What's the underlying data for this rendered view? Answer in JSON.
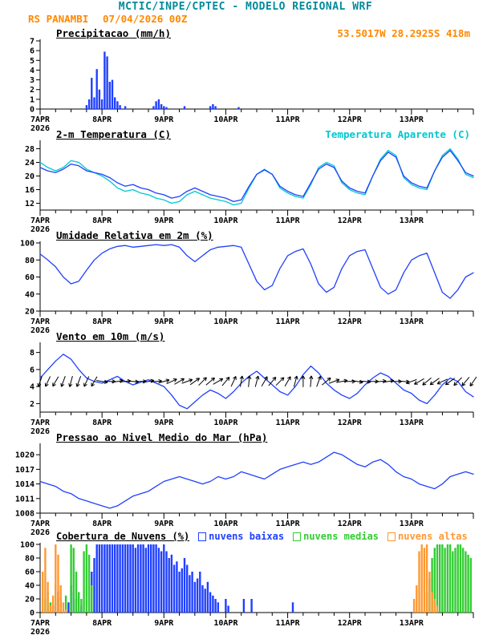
{
  "header": {
    "title": "MCTIC/INPE/CPTEC - MODELO REGIONAL WRF",
    "station": "RS PANAMBI",
    "run": "07/04/2026 00Z",
    "location": "53.5017W 28.2925S 418m"
  },
  "colors": {
    "teal": "#008b9b",
    "orange_text": "#ff8800",
    "blue_line": "#2040ff",
    "cyan_line": "#00c8d0",
    "green_bar": "#33cc33",
    "orange_bar": "#ff9933",
    "axis": "#000000"
  },
  "x_axis": {
    "hours": 168,
    "day_step": 24,
    "minor_step": 6,
    "day_labels": [
      "7APR",
      "8APR",
      "9APR",
      "10APR",
      "11APR",
      "12APR",
      "13APR"
    ],
    "year_label": "2026"
  },
  "chart_data": [
    {
      "type": "bar",
      "title": "Precipitacao (mm/h)",
      "ylim": [
        0,
        7
      ],
      "yticks": [
        0,
        1,
        2,
        3,
        4,
        5,
        6,
        7
      ],
      "series": [
        {
          "name": "precipitacao",
          "type": "bars",
          "color": "#2040ff",
          "data": [
            [
              18,
              0.4
            ],
            [
              19,
              1.0
            ],
            [
              20,
              3.2
            ],
            [
              21,
              1.2
            ],
            [
              22,
              4.1
            ],
            [
              23,
              2.0
            ],
            [
              24,
              1.0
            ],
            [
              25,
              5.9
            ],
            [
              26,
              5.4
            ],
            [
              27,
              2.8
            ],
            [
              28,
              3.0
            ],
            [
              29,
              1.2
            ],
            [
              30,
              0.8
            ],
            [
              31,
              0.4
            ],
            [
              33,
              0.3
            ],
            [
              44,
              0.3
            ],
            [
              45,
              0.8
            ],
            [
              46,
              1.0
            ],
            [
              47,
              0.5
            ],
            [
              48,
              0.3
            ],
            [
              49,
              0.2
            ],
            [
              56,
              0.3
            ],
            [
              66,
              0.3
            ],
            [
              67,
              0.5
            ],
            [
              68,
              0.3
            ],
            [
              77,
              0.2
            ]
          ]
        }
      ]
    },
    {
      "type": "line",
      "title": "2-m Temperatura (C)",
      "extra_label": {
        "text": "Temperatura Aparente (C)",
        "color": "#00c8d0"
      },
      "ylim": [
        10,
        30
      ],
      "yticks": [
        12,
        16,
        20,
        24,
        28
      ],
      "series": [
        {
          "name": "temperatura_aparente",
          "type": "line",
          "color": "#00c8d0",
          "step": 3,
          "values": [
            24.0,
            22.5,
            21.5,
            22.5,
            24.5,
            24.0,
            22.0,
            21.0,
            20.0,
            18.5,
            16.5,
            15.5,
            16.0,
            15.0,
            14.5,
            13.5,
            13.0,
            12.0,
            12.5,
            14.5,
            15.5,
            14.5,
            13.5,
            13.0,
            12.5,
            11.5,
            12.0,
            16.5,
            20.5,
            22.0,
            20.5,
            16.5,
            15.0,
            14.0,
            13.5,
            17.5,
            22.5,
            24.0,
            23.0,
            18.0,
            16.0,
            15.0,
            14.5,
            20.0,
            25.0,
            27.5,
            26.0,
            19.5,
            17.5,
            16.5,
            16.0,
            21.5,
            26.0,
            28.0,
            25.0,
            20.5,
            19.5
          ]
        },
        {
          "name": "temperatura_2m",
          "type": "line",
          "color": "#2040ff",
          "step": 3,
          "values": [
            22.5,
            21.5,
            21.0,
            22.0,
            23.5,
            23.0,
            21.5,
            21.0,
            20.5,
            19.5,
            18.0,
            17.0,
            17.5,
            16.5,
            16.0,
            15.0,
            14.5,
            13.5,
            14.0,
            15.5,
            16.5,
            15.5,
            14.5,
            14.0,
            13.5,
            12.5,
            13.0,
            17.0,
            20.5,
            21.8,
            20.5,
            17.0,
            15.5,
            14.5,
            14.0,
            18.0,
            22.0,
            23.5,
            22.5,
            18.5,
            16.5,
            15.5,
            15.0,
            20.0,
            24.5,
            27.0,
            25.5,
            20.0,
            18.0,
            17.0,
            16.5,
            21.5,
            25.5,
            27.5,
            24.5,
            21.0,
            20.0
          ]
        }
      ]
    },
    {
      "type": "line",
      "title": "Umidade Relativa em 2m (%)",
      "ylim": [
        20,
        100
      ],
      "yticks": [
        20,
        40,
        60,
        80,
        100
      ],
      "series": [
        {
          "name": "umidade_relativa",
          "type": "line",
          "color": "#2040ff",
          "step": 3,
          "values": [
            87,
            80,
            72,
            60,
            52,
            55,
            68,
            80,
            88,
            93,
            96,
            97,
            95,
            96,
            97,
            98,
            97,
            98,
            95,
            85,
            78,
            85,
            92,
            95,
            96,
            97,
            95,
            75,
            55,
            45,
            50,
            70,
            85,
            90,
            93,
            75,
            52,
            42,
            48,
            70,
            85,
            90,
            92,
            70,
            48,
            40,
            45,
            65,
            80,
            85,
            88,
            65,
            42,
            35,
            45,
            60,
            65
          ]
        }
      ]
    },
    {
      "type": "line",
      "title": "Vento em 10m (m/s)",
      "ylim": [
        1,
        9
      ],
      "yticks": [
        2,
        4,
        6,
        8
      ],
      "series": [
        {
          "name": "velocidade_vento",
          "type": "line",
          "color": "#2040ff",
          "step": 3,
          "values": [
            5.0,
            6.0,
            7.0,
            7.8,
            7.2,
            6.0,
            5.0,
            4.6,
            4.4,
            4.8,
            5.2,
            4.6,
            4.2,
            4.5,
            4.8,
            4.4,
            4.0,
            3.0,
            1.8,
            1.4,
            2.2,
            3.0,
            3.6,
            3.2,
            2.6,
            3.4,
            4.4,
            5.2,
            5.8,
            5.0,
            4.2,
            3.4,
            3.0,
            4.0,
            5.4,
            6.4,
            5.6,
            4.4,
            3.6,
            3.0,
            2.6,
            3.2,
            4.2,
            5.0,
            5.6,
            5.2,
            4.4,
            3.6,
            3.2,
            2.4,
            2.0,
            3.0,
            4.2,
            5.0,
            4.6,
            3.4,
            2.8
          ]
        },
        {
          "name": "direcao_vento",
          "type": "arrows",
          "color": "#000000",
          "anchor_y": 4.6,
          "step": 3,
          "dirs": [
            250,
            245,
            240,
            250,
            255,
            250,
            245,
            240,
            350,
            0,
            10,
            5,
            355,
            0,
            10,
            5,
            15,
            25,
            30,
            20,
            35,
            45,
            40,
            30,
            50,
            65,
            80,
            85,
            75,
            60,
            50,
            45,
            60,
            75,
            90,
            85,
            70,
            40,
            20,
            10,
            0,
            350,
            355,
            0,
            5,
            10,
            0,
            355,
            200,
            210,
            220,
            215,
            205,
            215,
            225,
            230,
            235
          ]
        }
      ]
    },
    {
      "type": "line",
      "title": "Pressao ao Nivel Medio do Mar (hPa)",
      "ylim": [
        1008,
        1022
      ],
      "yticks": [
        1008,
        1011,
        1014,
        1017,
        1020
      ],
      "series": [
        {
          "name": "pressao_nivel_mar",
          "type": "line",
          "color": "#2040ff",
          "step": 3,
          "values": [
            1014.5,
            1014.0,
            1013.5,
            1012.5,
            1012.0,
            1011.0,
            1010.5,
            1010.0,
            1009.5,
            1009.0,
            1009.5,
            1010.5,
            1011.5,
            1012.0,
            1012.5,
            1013.5,
            1014.5,
            1015.0,
            1015.5,
            1015.0,
            1014.5,
            1014.0,
            1014.5,
            1015.5,
            1015.0,
            1015.5,
            1016.5,
            1016.0,
            1015.5,
            1015.0,
            1016.0,
            1017.0,
            1017.5,
            1018.0,
            1018.5,
            1018.0,
            1018.5,
            1019.5,
            1020.5,
            1020.0,
            1019.0,
            1018.0,
            1017.5,
            1018.5,
            1019.0,
            1018.0,
            1016.5,
            1015.5,
            1015.0,
            1014.0,
            1013.5,
            1013.0,
            1014.0,
            1015.5,
            1016.0,
            1016.5,
            1016.0
          ]
        }
      ]
    },
    {
      "type": "bar",
      "title": "Cobertura de Nuvens (%)",
      "ylim": [
        0,
        100
      ],
      "yticks": [
        0,
        20,
        40,
        60,
        80,
        100
      ],
      "legend": [
        {
          "label": "nuvens baixas",
          "color": "#2040ff"
        },
        {
          "label": "nuvens medias",
          "color": "#33cc33"
        },
        {
          "label": "nuvens altas",
          "color": "#ff9933"
        }
      ],
      "series": [
        {
          "name": "nuvens_baixas",
          "type": "bars",
          "color": "#2040ff",
          "data": [
            [
              5,
              10
            ],
            [
              7,
              30
            ],
            [
              8,
              20
            ],
            [
              11,
              15
            ],
            [
              12,
              40
            ],
            [
              13,
              30
            ],
            [
              14,
              20
            ],
            [
              16,
              10
            ],
            [
              20,
              60
            ],
            [
              21,
              80
            ],
            [
              22,
              100
            ],
            [
              23,
              100
            ],
            [
              24,
              100
            ],
            [
              25,
              100
            ],
            [
              26,
              100
            ],
            [
              27,
              100
            ],
            [
              28,
              100
            ],
            [
              29,
              100
            ],
            [
              30,
              100
            ],
            [
              31,
              100
            ],
            [
              32,
              100
            ],
            [
              33,
              100
            ],
            [
              34,
              100
            ],
            [
              35,
              100
            ],
            [
              36,
              100
            ],
            [
              37,
              95
            ],
            [
              38,
              100
            ],
            [
              39,
              100
            ],
            [
              40,
              100
            ],
            [
              41,
              95
            ],
            [
              42,
              100
            ],
            [
              43,
              100
            ],
            [
              44,
              100
            ],
            [
              45,
              100
            ],
            [
              46,
              95
            ],
            [
              47,
              90
            ],
            [
              48,
              100
            ],
            [
              49,
              90
            ],
            [
              50,
              80
            ],
            [
              51,
              85
            ],
            [
              52,
              70
            ],
            [
              53,
              75
            ],
            [
              54,
              60
            ],
            [
              55,
              65
            ],
            [
              56,
              80
            ],
            [
              57,
              70
            ],
            [
              58,
              55
            ],
            [
              59,
              60
            ],
            [
              60,
              45
            ],
            [
              61,
              50
            ],
            [
              62,
              60
            ],
            [
              63,
              40
            ],
            [
              64,
              35
            ],
            [
              65,
              45
            ],
            [
              66,
              30
            ],
            [
              67,
              25
            ],
            [
              68,
              20
            ],
            [
              69,
              15
            ],
            [
              72,
              20
            ],
            [
              73,
              10
            ],
            [
              79,
              20
            ],
            [
              82,
              20
            ],
            [
              98,
              15
            ]
          ]
        },
        {
          "name": "nuvens_medias",
          "type": "bars",
          "color": "#33cc33",
          "data": [
            [
              2,
              20
            ],
            [
              3,
              30
            ],
            [
              4,
              15
            ],
            [
              6,
              40
            ],
            [
              7,
              20
            ],
            [
              8,
              10
            ],
            [
              10,
              25
            ],
            [
              12,
              100
            ],
            [
              13,
              95
            ],
            [
              14,
              60
            ],
            [
              15,
              30
            ],
            [
              16,
              20
            ],
            [
              17,
              90
            ],
            [
              18,
              100
            ],
            [
              19,
              85
            ],
            [
              20,
              40
            ],
            [
              150,
              30
            ],
            [
              151,
              50
            ],
            [
              152,
              80
            ],
            [
              153,
              95
            ],
            [
              154,
              100
            ],
            [
              155,
              100
            ],
            [
              156,
              100
            ],
            [
              157,
              95
            ],
            [
              158,
              100
            ],
            [
              159,
              100
            ],
            [
              160,
              90
            ],
            [
              161,
              95
            ],
            [
              162,
              100
            ],
            [
              163,
              100
            ],
            [
              164,
              95
            ],
            [
              165,
              90
            ],
            [
              166,
              85
            ],
            [
              167,
              80
            ]
          ]
        },
        {
          "name": "nuvens_altas",
          "type": "bars",
          "color": "#ff9933",
          "data": [
            [
              1,
              60
            ],
            [
              2,
              95
            ],
            [
              3,
              45
            ],
            [
              4,
              10
            ],
            [
              5,
              25
            ],
            [
              6,
              100
            ],
            [
              7,
              85
            ],
            [
              8,
              40
            ],
            [
              9,
              15
            ],
            [
              10,
              5
            ],
            [
              145,
              20
            ],
            [
              146,
              40
            ],
            [
              147,
              90
            ],
            [
              148,
              100
            ],
            [
              149,
              95
            ],
            [
              150,
              100
            ],
            [
              151,
              60
            ],
            [
              152,
              30
            ],
            [
              153,
              20
            ],
            [
              154,
              10
            ]
          ]
        }
      ]
    }
  ]
}
